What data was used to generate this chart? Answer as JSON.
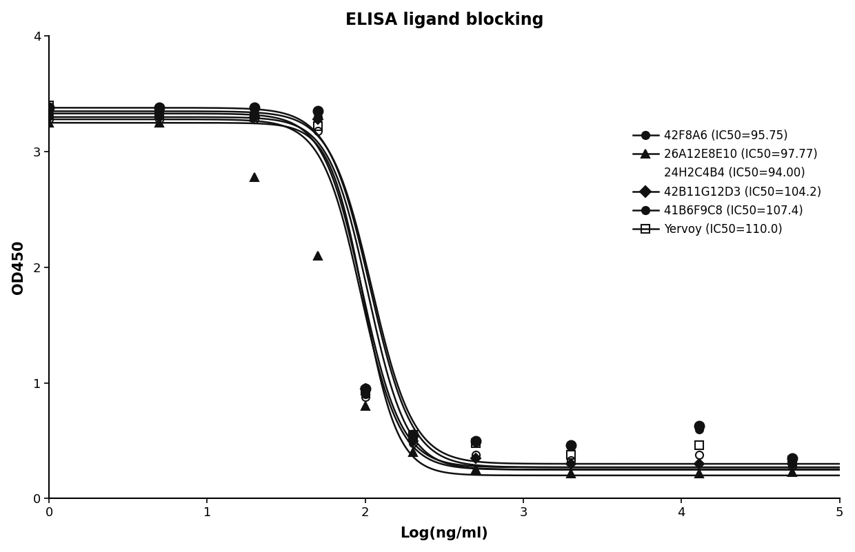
{
  "title": "ELISA ligand blocking",
  "xlabel": "Log(ng/ml)",
  "ylabel": "OD450",
  "xlim": [
    0,
    5
  ],
  "ylim": [
    0,
    4
  ],
  "xticks": [
    0,
    1,
    2,
    3,
    4,
    5
  ],
  "yticks": [
    0,
    1,
    2,
    3,
    4
  ],
  "series": [
    {
      "label": "42F8A6 (IC50=95.75)",
      "IC50_log": 1.981,
      "top": 3.33,
      "bottom": 0.27,
      "hill": 3.5,
      "marker": "o",
      "fillstyle": "full",
      "color": "#111111",
      "markersize": 8,
      "data_x": [
        0,
        0.699,
        1.301,
        1.699,
        2.0,
        2.301,
        2.699,
        3.301,
        4.114,
        4.699
      ],
      "data_y": [
        3.33,
        3.33,
        3.33,
        3.3,
        0.9,
        0.55,
        0.5,
        0.45,
        0.6,
        0.3
      ]
    },
    {
      "label": "26A12E8E10 (IC50=97.77)",
      "IC50_log": 1.99,
      "top": 3.25,
      "bottom": 0.2,
      "hill": 4.0,
      "marker": "^",
      "fillstyle": "full",
      "color": "#111111",
      "markersize": 8,
      "data_x": [
        0,
        0.699,
        1.301,
        1.699,
        2.0,
        2.301,
        2.699,
        3.301,
        4.114,
        4.699
      ],
      "data_y": [
        3.25,
        3.25,
        2.78,
        2.1,
        0.8,
        0.4,
        0.25,
        0.22,
        0.22,
        0.23
      ]
    },
    {
      "label": "24H2C4B4 (IC50=94.00)",
      "IC50_log": 1.973,
      "top": 3.28,
      "bottom": 0.25,
      "hill": 3.5,
      "marker": "o",
      "fillstyle": "none",
      "color": "#111111",
      "markersize": 8,
      "data_x": [
        0,
        0.699,
        1.301,
        1.699,
        2.0,
        2.301,
        2.699,
        3.301,
        4.114,
        4.699
      ],
      "data_y": [
        3.28,
        3.28,
        3.28,
        3.18,
        0.88,
        0.48,
        0.38,
        0.33,
        0.38,
        0.28
      ]
    },
    {
      "label": "42B11G12D3 (IC50=104.2)",
      "IC50_log": 2.018,
      "top": 3.3,
      "bottom": 0.25,
      "hill": 3.5,
      "marker": "D",
      "fillstyle": "full",
      "color": "#111111",
      "markersize": 7,
      "data_x": [
        0,
        0.699,
        1.301,
        1.699,
        2.0,
        2.301,
        2.699,
        3.301,
        4.114,
        4.699
      ],
      "data_y": [
        3.3,
        3.3,
        3.3,
        3.28,
        0.95,
        0.5,
        0.35,
        0.3,
        0.3,
        0.3
      ]
    },
    {
      "label": "41B6F9C8 (IC50=107.4)",
      "IC50_log": 2.031,
      "top": 3.38,
      "bottom": 0.27,
      "hill": 3.3,
      "marker": "o",
      "fillstyle": "full",
      "color": "#111111",
      "markersize": 10,
      "data_x": [
        0,
        0.699,
        1.301,
        1.699,
        2.0,
        2.301,
        2.699,
        3.301,
        4.114,
        4.699
      ],
      "data_y": [
        3.38,
        3.38,
        3.38,
        3.35,
        0.95,
        0.55,
        0.5,
        0.46,
        0.63,
        0.35
      ]
    },
    {
      "label": "Yervoy (IC50=110.0)",
      "IC50_log": 2.041,
      "top": 3.35,
      "bottom": 0.3,
      "hill": 3.3,
      "marker": "s",
      "fillstyle": "none",
      "color": "#111111",
      "markersize": 8,
      "data_x": [
        0,
        0.699,
        1.301,
        1.699,
        2.0,
        2.301,
        2.699,
        3.301,
        4.114,
        4.699
      ],
      "data_y": [
        3.4,
        3.35,
        3.3,
        3.22,
        0.93,
        0.55,
        0.48,
        0.38,
        0.46,
        0.33
      ]
    }
  ],
  "background_color": "#ffffff",
  "line_color": "#111111",
  "line_width": 1.8
}
